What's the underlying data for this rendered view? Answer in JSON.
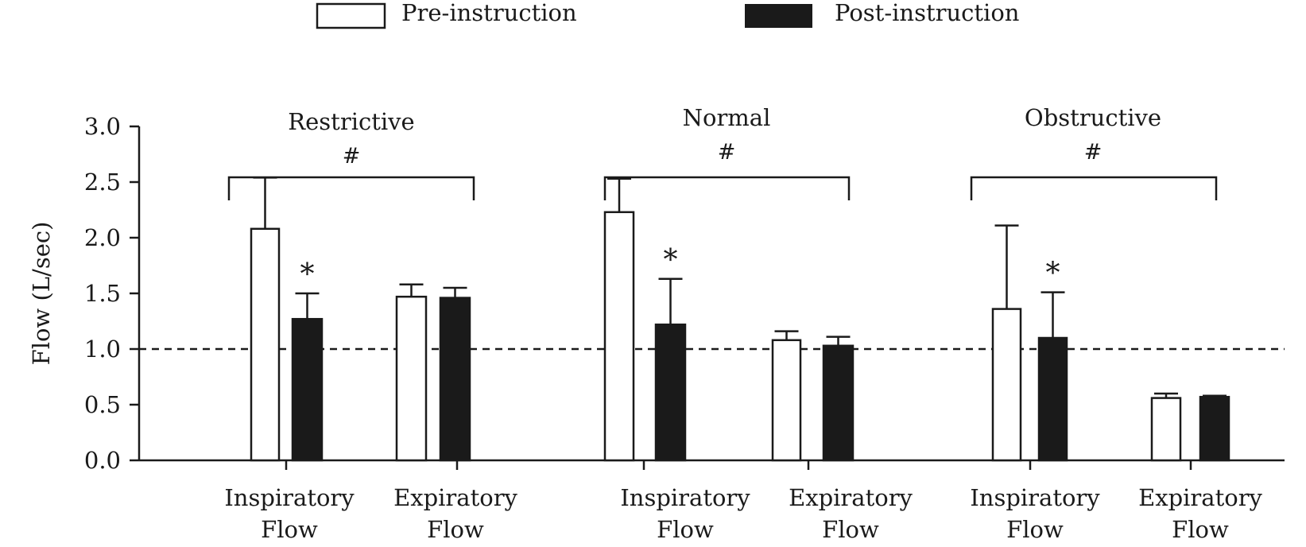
{
  "legend": {
    "pre_label": "Pre-instruction",
    "post_label": "Post-instruction"
  },
  "chart_data": {
    "type": "bar",
    "ylabel": "Flow (L/sec)",
    "ylim": [
      0,
      3.0
    ],
    "yticks": [
      "0.0",
      "0.5",
      "1.0",
      "1.5",
      "2.0",
      "2.5",
      "3.0"
    ],
    "reference_line": 1.0,
    "legend_position": "top",
    "series": [
      {
        "name": "Pre-instruction",
        "color": "#ffffff"
      },
      {
        "name": "Post-instruction",
        "color": "#1a1a1a"
      }
    ],
    "groups": [
      {
        "title": "Restrictive",
        "bracket_label": "#",
        "categories": [
          {
            "label": [
              "Inspiratory",
              "Flow"
            ],
            "pre": 2.08,
            "pre_err": 0.46,
            "post": 1.27,
            "post_err": 0.23,
            "star": "*"
          },
          {
            "label": [
              "Expiratory",
              "Flow"
            ],
            "pre": 1.47,
            "pre_err": 0.11,
            "post": 1.46,
            "post_err": 0.09,
            "star": ""
          }
        ]
      },
      {
        "title": "Normal",
        "bracket_label": "#",
        "categories": [
          {
            "label": [
              "Inspiratory",
              "Flow"
            ],
            "pre": 2.23,
            "pre_err": 0.3,
            "post": 1.22,
            "post_err": 0.41,
            "star": "*"
          },
          {
            "label": [
              "Expiratory",
              "Flow"
            ],
            "pre": 1.08,
            "pre_err": 0.08,
            "post": 1.03,
            "post_err": 0.08,
            "star": ""
          }
        ]
      },
      {
        "title": "Obstructive",
        "bracket_label": "#",
        "categories": [
          {
            "label": [
              "Inspiratory",
              "Flow"
            ],
            "pre": 1.36,
            "pre_err": 0.75,
            "post": 1.1,
            "post_err": 0.41,
            "star": "*"
          },
          {
            "label": [
              "Expiratory",
              "Flow"
            ],
            "pre": 0.56,
            "pre_err": 0.04,
            "post": 0.57,
            "post_err": 0.01,
            "star": ""
          }
        ]
      }
    ]
  }
}
